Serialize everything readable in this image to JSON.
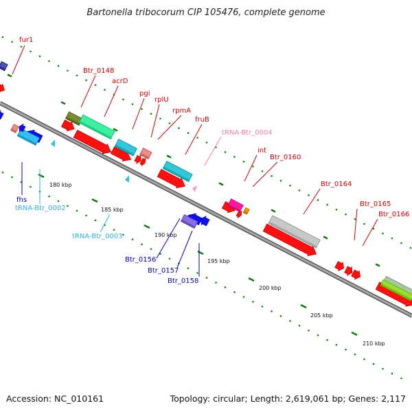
{
  "title": "Bartonella tribocorum CIP 105476, complete genome",
  "footer": {
    "accession": "Accession: NC_010161",
    "info": "Topology: circular; Length: 2,619,061 bp; Genes: 2,117"
  },
  "colors": {
    "backbone": "#8a8a8a",
    "cds": "#ff0000",
    "trna": "#33c0f0",
    "gene_label": "#cc0000",
    "blue_label": "#0000aa",
    "trna_label": "#33b0dd",
    "pink_label": "#f080b0",
    "tick": "#007700"
  },
  "ruler": [
    {
      "label": "180 kbp"
    },
    {
      "label": "185 kbp"
    },
    {
      "label": "190 kbp"
    },
    {
      "label": "195 kbp"
    },
    {
      "label": "200 kbp"
    },
    {
      "label": "205 kbp"
    },
    {
      "label": "210 kbp"
    }
  ],
  "genes": [
    {
      "label": "fur1",
      "color": "#cc0000"
    },
    {
      "label": "Btr_0148",
      "color": "#cc0000"
    },
    {
      "label": "acrD",
      "color": "#cc0000"
    },
    {
      "label": "pgi",
      "color": "#cc0000"
    },
    {
      "label": "rplU",
      "color": "#cc0000"
    },
    {
      "label": "rpmA",
      "color": "#cc0000"
    },
    {
      "label": "fruB",
      "color": "#cc0000"
    },
    {
      "label": "tRNA-Btr_0004",
      "color": "#f080b0"
    },
    {
      "label": "int",
      "color": "#cc0000"
    },
    {
      "label": "Btr_0160",
      "color": "#cc0000"
    },
    {
      "label": "Btr_0164",
      "color": "#cc0000"
    },
    {
      "label": "Btr_0165",
      "color": "#cc0000"
    },
    {
      "label": "Btr_0166",
      "color": "#cc0000"
    },
    {
      "label": "fhs",
      "color": "#0000aa"
    },
    {
      "label": "tRNA-Btr_0002",
      "color": "#33b0dd"
    },
    {
      "label": "tRNA-Btr_0003",
      "color": "#33b0dd"
    },
    {
      "label": "Btr_0156",
      "color": "#0000aa"
    },
    {
      "label": "Btr_0157",
      "color": "#0000aa"
    },
    {
      "label": "Btr_0158",
      "color": "#0000aa"
    }
  ]
}
